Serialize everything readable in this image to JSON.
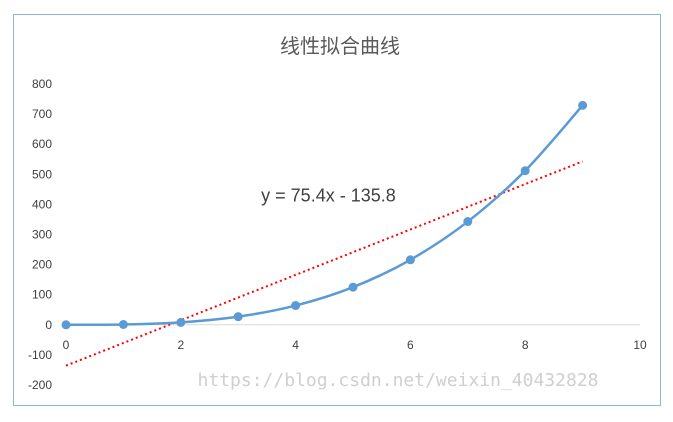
{
  "chart_data": {
    "type": "scatter",
    "title": "线性拟合曲线",
    "xlabel": "",
    "ylabel": "",
    "xlim": [
      0,
      10
    ],
    "ylim": [
      -200,
      800
    ],
    "x_ticks": [
      0,
      2,
      4,
      6,
      8,
      10
    ],
    "y_ticks": [
      800,
      700,
      600,
      500,
      400,
      300,
      200,
      100,
      0,
      -100,
      -200
    ],
    "grid": false,
    "series": [
      {
        "kind": "smooth-line-with-markers",
        "color": "#5b9bd5",
        "points": [
          [
            0,
            0
          ],
          [
            1,
            1
          ],
          [
            2,
            8
          ],
          [
            3,
            27
          ],
          [
            4,
            64
          ],
          [
            5,
            125
          ],
          [
            6,
            216
          ],
          [
            7,
            343
          ],
          [
            8,
            512
          ],
          [
            9,
            729
          ]
        ]
      },
      {
        "kind": "trendline",
        "color": "#ff0000",
        "style": "dotted",
        "slope": 75.4,
        "intercept": -135.8,
        "x_range": [
          0,
          9
        ]
      }
    ],
    "annotation": {
      "text": "y = 75.4x - 135.8",
      "x": 3.4,
      "y": 410
    }
  },
  "watermark": "https://blog.csdn.net/weixin_40432828"
}
